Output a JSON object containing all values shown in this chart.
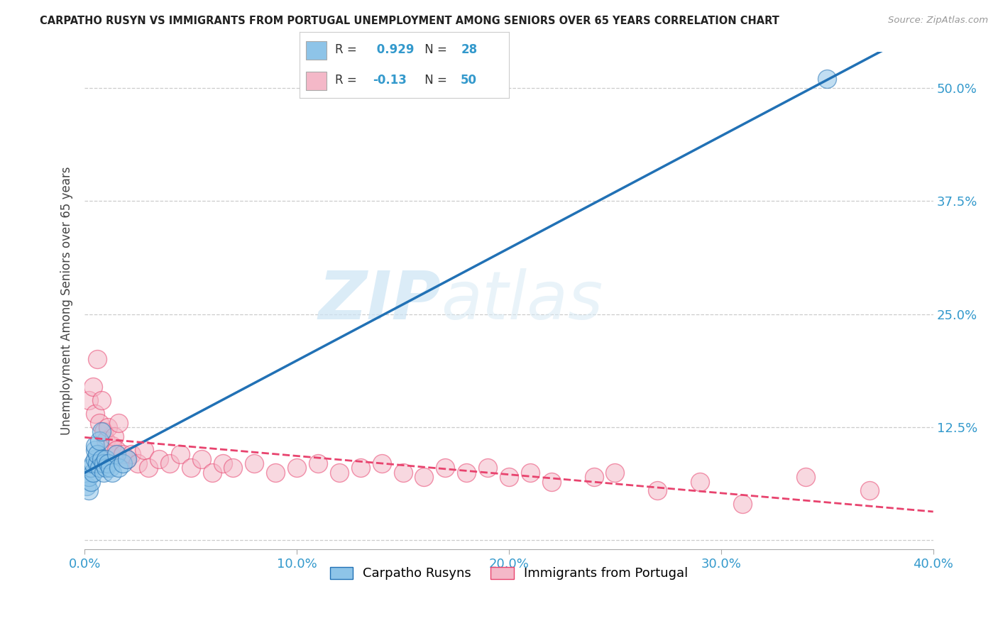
{
  "title": "CARPATHO RUSYN VS IMMIGRANTS FROM PORTUGAL UNEMPLOYMENT AMONG SENIORS OVER 65 YEARS CORRELATION CHART",
  "source": "Source: ZipAtlas.com",
  "ylabel": "Unemployment Among Seniors over 65 years",
  "xlabel_blue": "Carpatho Rusyns",
  "xlabel_pink": "Immigrants from Portugal",
  "R_blue": 0.929,
  "N_blue": 28,
  "R_pink": -0.13,
  "N_pink": 50,
  "xlim": [
    0.0,
    0.4
  ],
  "ylim": [
    -0.01,
    0.54
  ],
  "xticks": [
    0.0,
    0.1,
    0.2,
    0.3,
    0.4
  ],
  "yticks_right": [
    0.0,
    0.125,
    0.25,
    0.375,
    0.5
  ],
  "ytick_right_labels": [
    "",
    "12.5%",
    "25.0%",
    "37.5%",
    "50.0%"
  ],
  "background_color": "#ffffff",
  "blue_color": "#8ec4e8",
  "pink_color": "#f4b8c8",
  "line_blue": "#2171b5",
  "line_pink": "#e8436e",
  "watermark_zip": "ZIP",
  "watermark_atlas": "atlas",
  "blue_scatter_x": [
    0.001,
    0.002,
    0.002,
    0.003,
    0.003,
    0.004,
    0.004,
    0.005,
    0.005,
    0.005,
    0.006,
    0.006,
    0.007,
    0.007,
    0.008,
    0.008,
    0.009,
    0.009,
    0.01,
    0.01,
    0.011,
    0.012,
    0.013,
    0.015,
    0.016,
    0.018,
    0.02,
    0.35
  ],
  "blue_scatter_y": [
    0.06,
    0.055,
    0.07,
    0.065,
    0.08,
    0.075,
    0.085,
    0.09,
    0.1,
    0.105,
    0.085,
    0.095,
    0.08,
    0.11,
    0.09,
    0.12,
    0.075,
    0.085,
    0.08,
    0.09,
    0.085,
    0.08,
    0.075,
    0.095,
    0.08,
    0.085,
    0.09,
    0.51
  ],
  "pink_scatter_x": [
    0.002,
    0.004,
    0.005,
    0.006,
    0.007,
    0.008,
    0.009,
    0.01,
    0.011,
    0.012,
    0.013,
    0.014,
    0.015,
    0.016,
    0.018,
    0.02,
    0.022,
    0.025,
    0.028,
    0.03,
    0.035,
    0.04,
    0.045,
    0.05,
    0.055,
    0.06,
    0.065,
    0.07,
    0.08,
    0.09,
    0.1,
    0.11,
    0.12,
    0.13,
    0.14,
    0.15,
    0.16,
    0.17,
    0.18,
    0.19,
    0.2,
    0.21,
    0.22,
    0.24,
    0.25,
    0.27,
    0.29,
    0.31,
    0.34,
    0.37
  ],
  "pink_scatter_y": [
    0.155,
    0.17,
    0.14,
    0.2,
    0.13,
    0.155,
    0.12,
    0.11,
    0.125,
    0.095,
    0.105,
    0.115,
    0.1,
    0.13,
    0.095,
    0.09,
    0.095,
    0.085,
    0.1,
    0.08,
    0.09,
    0.085,
    0.095,
    0.08,
    0.09,
    0.075,
    0.085,
    0.08,
    0.085,
    0.075,
    0.08,
    0.085,
    0.075,
    0.08,
    0.085,
    0.075,
    0.07,
    0.08,
    0.075,
    0.08,
    0.07,
    0.075,
    0.065,
    0.07,
    0.075,
    0.055,
    0.065,
    0.04,
    0.07,
    0.055
  ]
}
